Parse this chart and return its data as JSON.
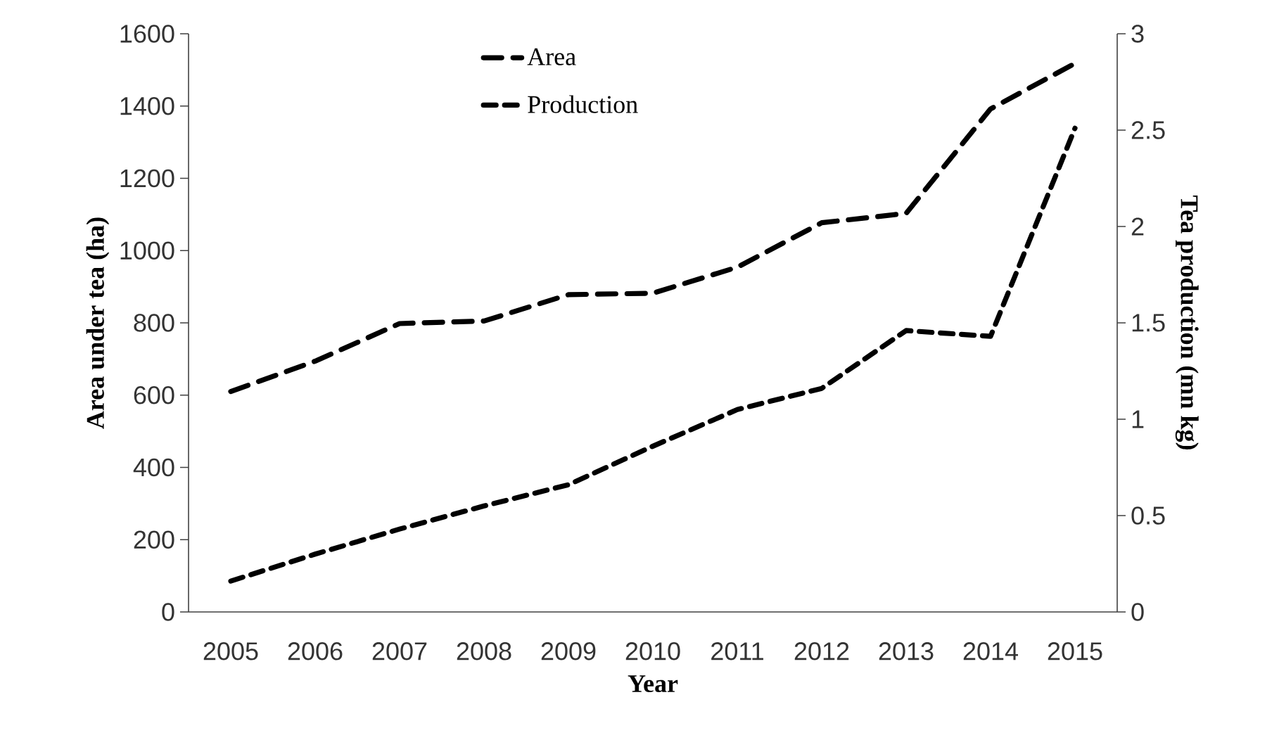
{
  "chart_data": {
    "type": "line",
    "xlabel": "Year",
    "ylabel": "Area under tea (ha)",
    "y2label": "Tea production (mn kg)",
    "categories": [
      "2005",
      "2006",
      "2007",
      "2008",
      "2009",
      "2010",
      "2011",
      "2012",
      "2013",
      "2014",
      "2015"
    ],
    "series": [
      {
        "name": "Area",
        "color": "#000000",
        "line_style": "dashed",
        "values": [
          610,
          694,
          798,
          805,
          878,
          882,
          954,
          1077,
          1103,
          1392,
          1518
        ]
      },
      {
        "name": "Production",
        "color": "#000000",
        "line_style": "dashed",
        "axis": "y2",
        "values": [
          0.16,
          0.3,
          0.43,
          0.55,
          0.66,
          0.86,
          1.05,
          1.16,
          1.46,
          1.43,
          2.51
        ]
      }
    ],
    "ylim": [
      0,
      1600
    ],
    "yticks": [
      0,
      200,
      400,
      600,
      800,
      1000,
      1200,
      1400,
      1600
    ],
    "y2lim": [
      0,
      3
    ],
    "y2ticks": [
      0,
      0.5,
      1,
      1.5,
      2,
      2.5,
      3
    ],
    "legend": "top"
  }
}
